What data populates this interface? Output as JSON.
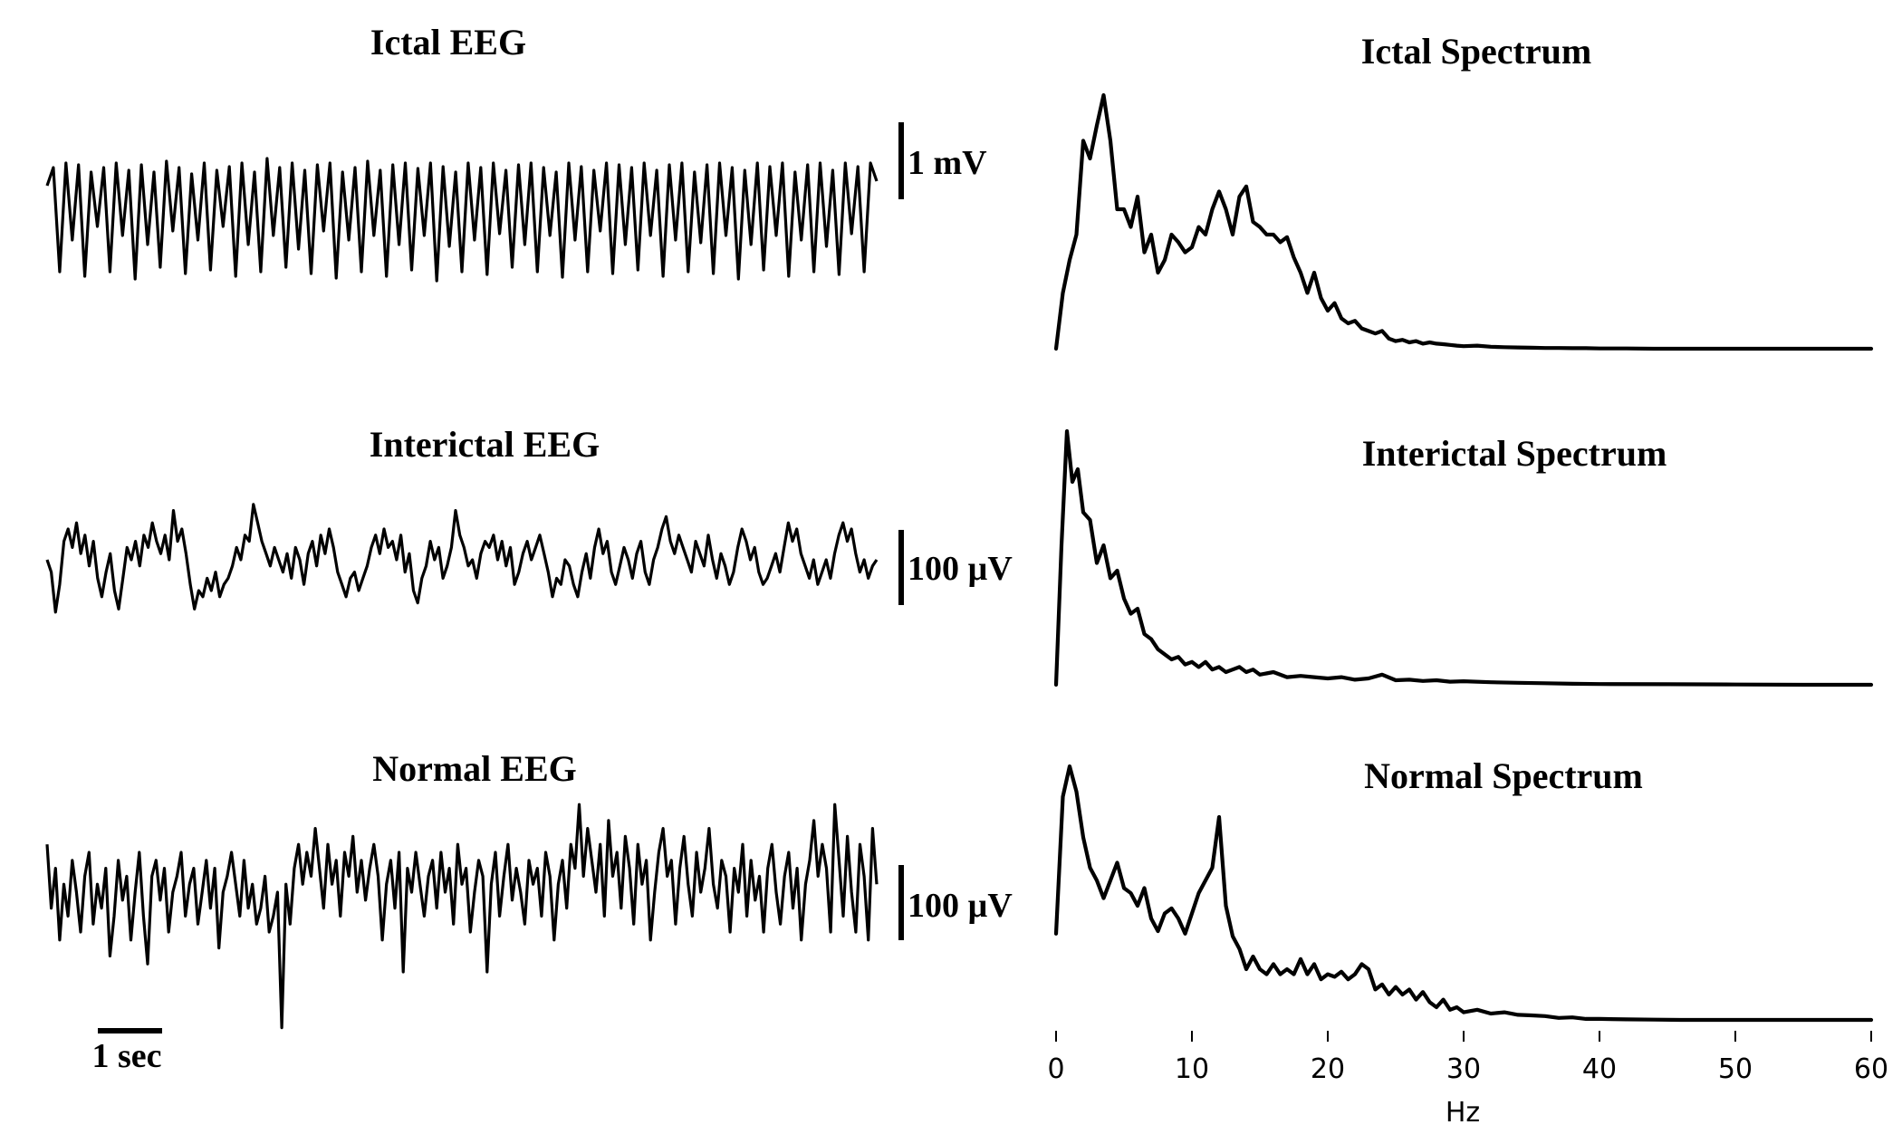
{
  "chart_data": [
    {
      "type": "line",
      "title": "Ictal EEG",
      "scale_bar": "1 mV",
      "series": [
        {
          "values": [
            0.05,
            0.25,
            -0.9,
            0.3,
            -0.55,
            0.28,
            -0.95,
            0.2,
            -0.4,
            0.25,
            -0.9,
            0.3,
            -0.5,
            0.22,
            -0.98,
            0.28,
            -0.6,
            0.2,
            -0.85,
            0.32,
            -0.45,
            0.25,
            -0.92,
            0.18,
            -0.55,
            0.3,
            -0.88,
            0.22,
            -0.4,
            0.26,
            -0.95,
            0.3,
            -0.6,
            0.2,
            -0.9,
            0.35,
            -0.5,
            0.25,
            -0.85,
            0.3,
            -0.65,
            0.22,
            -0.92,
            0.28,
            -0.45,
            0.3,
            -0.97,
            0.2,
            -0.55,
            0.25,
            -0.9,
            0.32,
            -0.5,
            0.22,
            -0.95,
            0.28,
            -0.6,
            0.3,
            -0.88,
            0.24,
            -0.5,
            0.3,
            -1.0,
            0.26,
            -0.62,
            0.2,
            -0.9,
            0.3,
            -0.55,
            0.25,
            -0.93,
            0.3,
            -0.48,
            0.22,
            -0.85,
            0.28,
            -0.6,
            0.3,
            -0.9,
            0.25,
            -0.5,
            0.2,
            -0.96,
            0.3,
            -0.55,
            0.26,
            -0.9,
            0.22,
            -0.45,
            0.3,
            -0.92,
            0.28,
            -0.6,
            0.25,
            -0.88,
            0.3,
            -0.5,
            0.22,
            -0.95,
            0.28,
            -0.55,
            0.3,
            -0.9,
            0.2,
            -0.58,
            0.28,
            -0.92,
            0.3,
            -0.5,
            0.25,
            -0.98,
            0.22,
            -0.6,
            0.3,
            -0.88,
            0.26,
            -0.5,
            0.3,
            -0.95,
            0.2,
            -0.55,
            0.28,
            -0.9,
            0.3,
            -0.62,
            0.22,
            -0.93,
            0.3,
            -0.48,
            0.26,
            -0.9,
            0.3,
            0.1
          ]
        }
      ]
    },
    {
      "type": "line",
      "title": "Interictal EEG",
      "scale_bar": "100 µV",
      "series": [
        {
          "values": [
            0.0,
            -0.2,
            -0.85,
            -0.4,
            0.3,
            0.5,
            0.2,
            0.6,
            0.1,
            0.4,
            -0.1,
            0.3,
            -0.3,
            -0.6,
            -0.2,
            0.1,
            -0.5,
            -0.8,
            -0.3,
            0.2,
            0.0,
            0.3,
            -0.1,
            0.4,
            0.2,
            0.6,
            0.3,
            0.1,
            0.4,
            0.0,
            0.8,
            0.3,
            0.5,
            0.1,
            -0.4,
            -0.8,
            -0.5,
            -0.6,
            -0.3,
            -0.5,
            -0.2,
            -0.6,
            -0.4,
            -0.3,
            -0.1,
            0.2,
            0.0,
            0.4,
            0.3,
            0.9,
            0.6,
            0.3,
            0.1,
            -0.1,
            0.2,
            0.0,
            -0.2,
            0.1,
            -0.3,
            0.2,
            0.0,
            -0.4,
            0.1,
            0.3,
            -0.1,
            0.4,
            0.1,
            0.5,
            0.2,
            -0.2,
            -0.4,
            -0.6,
            -0.3,
            -0.2,
            -0.5,
            -0.3,
            -0.1,
            0.2,
            0.4,
            0.1,
            0.5,
            0.2,
            0.3,
            0.0,
            0.4,
            -0.2,
            0.1,
            -0.5,
            -0.7,
            -0.3,
            -0.1,
            0.3,
            0.0,
            0.2,
            -0.3,
            -0.1,
            0.2,
            0.8,
            0.4,
            0.2,
            -0.1,
            0.0,
            -0.3,
            0.1,
            0.3,
            0.2,
            0.4,
            0.0,
            0.3,
            -0.1,
            0.2,
            -0.4,
            -0.2,
            0.1,
            0.3,
            0.0,
            0.2,
            0.4,
            0.1,
            -0.2,
            -0.6,
            -0.3,
            -0.4,
            0.0,
            -0.1,
            -0.4,
            -0.6,
            -0.2,
            0.1,
            -0.3,
            0.2,
            0.5,
            0.1,
            0.3,
            -0.2,
            -0.4,
            -0.1,
            0.2,
            0.0,
            -0.3,
            0.1,
            0.3,
            -0.2,
            -0.4,
            0.0,
            0.2,
            0.5,
            0.7,
            0.3,
            0.1,
            0.4,
            0.2,
            0.0,
            -0.2,
            0.3,
            0.1,
            -0.1,
            0.4,
            0.0,
            -0.3,
            0.1,
            -0.1,
            -0.4,
            -0.2,
            0.2,
            0.5,
            0.3,
            0.0,
            0.2,
            -0.2,
            -0.4,
            -0.3,
            -0.1,
            0.1,
            -0.2,
            0.2,
            0.6,
            0.3,
            0.5,
            0.1,
            -0.1,
            -0.3,
            0.0,
            -0.4,
            -0.2,
            0.0,
            -0.3,
            0.1,
            0.4,
            0.6,
            0.3,
            0.5,
            0.1,
            -0.2,
            0.0,
            -0.3,
            -0.1,
            0.0
          ]
        }
      ]
    },
    {
      "type": "line",
      "title": "Normal EEG",
      "scale_bar": "100 µV",
      "time_scale_bar": "1 sec",
      "series": [
        {
          "values": [
            0.6,
            -0.2,
            0.3,
            -0.6,
            0.1,
            -0.3,
            0.4,
            0.0,
            -0.5,
            0.2,
            0.5,
            -0.4,
            0.1,
            -0.2,
            0.3,
            -0.8,
            -0.3,
            0.4,
            -0.1,
            0.2,
            -0.6,
            0.0,
            0.5,
            -0.3,
            -0.9,
            0.2,
            0.4,
            -0.1,
            0.3,
            -0.5,
            0.0,
            0.2,
            0.5,
            -0.3,
            0.1,
            0.3,
            -0.4,
            0.0,
            0.4,
            -0.2,
            0.3,
            -0.7,
            0.0,
            0.2,
            0.5,
            0.1,
            -0.3,
            0.4,
            -0.2,
            0.1,
            -0.4,
            -0.2,
            0.2,
            -0.5,
            -0.3,
            0.0,
            -1.7,
            0.1,
            -0.4,
            0.3,
            0.6,
            0.1,
            0.5,
            0.2,
            0.8,
            0.3,
            -0.2,
            0.6,
            0.1,
            0.4,
            -0.3,
            0.5,
            0.2,
            0.7,
            0.0,
            0.4,
            -0.1,
            0.3,
            0.6,
            0.2,
            -0.6,
            0.1,
            0.4,
            -0.2,
            0.5,
            -1.0,
            0.3,
            0.0,
            0.5,
            0.1,
            -0.3,
            0.2,
            0.4,
            -0.2,
            0.5,
            0.0,
            0.3,
            -0.4,
            0.6,
            0.1,
            0.3,
            -0.5,
            0.0,
            0.4,
            0.2,
            -1.0,
            0.1,
            0.5,
            -0.3,
            0.2,
            0.6,
            -0.1,
            0.3,
            0.0,
            -0.4,
            0.4,
            0.1,
            0.3,
            -0.3,
            0.5,
            0.2,
            -0.6,
            0.1,
            0.4,
            -0.2,
            0.6,
            0.3,
            1.1,
            0.2,
            0.8,
            0.4,
            0.0,
            0.6,
            -0.3,
            0.9,
            0.2,
            0.5,
            -0.2,
            0.7,
            0.3,
            -0.4,
            0.6,
            0.1,
            0.4,
            -0.6,
            0.0,
            0.5,
            0.8,
            0.2,
            0.4,
            -0.4,
            0.3,
            0.7,
            0.1,
            -0.3,
            0.5,
            0.0,
            0.3,
            0.8,
            0.1,
            -0.2,
            0.4,
            0.2,
            -0.5,
            0.3,
            0.0,
            0.6,
            -0.3,
            0.4,
            -0.1,
            0.2,
            -0.5,
            0.3,
            0.6,
            0.0,
            -0.4,
            0.2,
            0.5,
            -0.2,
            0.3,
            -0.6,
            0.1,
            0.4,
            0.9,
            0.2,
            0.6,
            0.3,
            -0.5,
            1.1,
            0.4,
            -0.3,
            0.7,
            0.0,
            -0.5,
            0.6,
            0.2,
            -0.6,
            0.8,
            0.1
          ]
        }
      ]
    },
    {
      "type": "line",
      "title": "Ictal Spectrum",
      "xlabel": "Hz",
      "xlim": [
        0,
        60
      ],
      "series": [
        {
          "x": [
            0,
            0.5,
            1,
            1.5,
            2,
            2.5,
            3,
            3.5,
            4,
            4.5,
            5,
            5.5,
            6,
            6.5,
            7,
            7.5,
            8,
            8.5,
            9,
            9.5,
            10,
            10.5,
            11,
            11.5,
            12,
            12.5,
            13,
            13.5,
            14,
            14.5,
            15,
            15.5,
            16,
            16.5,
            17,
            17.5,
            18,
            18.5,
            19,
            19.5,
            20,
            20.5,
            21,
            21.5,
            22,
            22.5,
            23,
            23.5,
            24,
            24.5,
            25,
            25.5,
            26,
            26.5,
            27,
            27.5,
            28,
            28.5,
            29,
            29.5,
            30,
            31,
            32,
            33,
            34,
            35,
            36,
            37,
            38,
            39,
            40,
            42,
            44,
            46,
            48,
            50,
            52,
            54,
            56,
            58,
            60
          ],
          "y": [
            0.0,
            0.22,
            0.35,
            0.45,
            0.82,
            0.75,
            0.88,
            1.0,
            0.82,
            0.55,
            0.55,
            0.48,
            0.6,
            0.38,
            0.45,
            0.3,
            0.35,
            0.45,
            0.42,
            0.38,
            0.4,
            0.48,
            0.45,
            0.55,
            0.62,
            0.55,
            0.45,
            0.6,
            0.64,
            0.5,
            0.48,
            0.45,
            0.45,
            0.42,
            0.44,
            0.36,
            0.3,
            0.22,
            0.3,
            0.2,
            0.15,
            0.18,
            0.12,
            0.1,
            0.11,
            0.08,
            0.07,
            0.06,
            0.07,
            0.04,
            0.03,
            0.035,
            0.025,
            0.03,
            0.02,
            0.025,
            0.02,
            0.018,
            0.015,
            0.012,
            0.01,
            0.012,
            0.008,
            0.006,
            0.005,
            0.004,
            0.003,
            0.003,
            0.002,
            0.002,
            0.001,
            0.001,
            0.0,
            0.0,
            0.0,
            0.0,
            0.0,
            0.0,
            0.0,
            0.0,
            0.0
          ]
        }
      ]
    },
    {
      "type": "line",
      "title": "Interictal Spectrum",
      "xlabel": "Hz",
      "xlim": [
        0,
        60
      ],
      "series": [
        {
          "x": [
            0,
            0.4,
            0.8,
            1.2,
            1.6,
            2,
            2.5,
            3,
            3.5,
            4,
            4.5,
            5,
            5.5,
            6,
            6.5,
            7,
            7.5,
            8,
            8.5,
            9,
            9.5,
            10,
            10.5,
            11,
            11.5,
            12,
            12.5,
            13,
            13.5,
            14,
            14.5,
            15,
            16,
            17,
            18,
            19,
            20,
            21,
            22,
            23,
            24,
            25,
            26,
            27,
            28,
            29,
            30,
            32,
            34,
            36,
            38,
            40,
            45,
            50,
            55,
            60
          ],
          "y": [
            0.0,
            0.55,
            1.0,
            0.8,
            0.85,
            0.68,
            0.65,
            0.48,
            0.55,
            0.42,
            0.45,
            0.34,
            0.28,
            0.3,
            0.2,
            0.18,
            0.14,
            0.12,
            0.1,
            0.11,
            0.08,
            0.09,
            0.07,
            0.09,
            0.06,
            0.07,
            0.05,
            0.06,
            0.07,
            0.05,
            0.06,
            0.04,
            0.05,
            0.03,
            0.035,
            0.03,
            0.025,
            0.03,
            0.02,
            0.025,
            0.04,
            0.018,
            0.02,
            0.015,
            0.018,
            0.012,
            0.014,
            0.01,
            0.008,
            0.006,
            0.004,
            0.003,
            0.002,
            0.001,
            0.0,
            0.0
          ]
        }
      ]
    },
    {
      "type": "line",
      "title": "Normal Spectrum",
      "xlabel": "Hz",
      "xticks": [
        0,
        10,
        20,
        30,
        40,
        50,
        60
      ],
      "xlim": [
        0,
        60
      ],
      "series": [
        {
          "x": [
            0,
            0.5,
            1,
            1.5,
            2,
            2.5,
            3,
            3.5,
            4,
            4.5,
            5,
            5.5,
            6,
            6.5,
            7,
            7.5,
            8,
            8.5,
            9,
            9.5,
            10,
            10.5,
            11,
            11.5,
            12,
            12.5,
            13,
            13.5,
            14,
            14.5,
            15,
            15.5,
            16,
            16.5,
            17,
            17.5,
            18,
            18.5,
            19,
            19.5,
            20,
            20.5,
            21,
            21.5,
            22,
            22.5,
            23,
            23.5,
            24,
            24.5,
            25,
            25.5,
            26,
            26.5,
            27,
            27.5,
            28,
            28.5,
            29,
            29.5,
            30,
            31,
            32,
            33,
            34,
            35,
            36,
            37,
            38,
            39,
            40,
            42,
            44,
            46,
            48,
            50,
            52,
            54,
            56,
            58,
            60
          ],
          "y": [
            0.34,
            0.88,
            1.0,
            0.9,
            0.72,
            0.6,
            0.55,
            0.48,
            0.55,
            0.62,
            0.52,
            0.5,
            0.45,
            0.52,
            0.4,
            0.35,
            0.42,
            0.44,
            0.4,
            0.34,
            0.42,
            0.5,
            0.55,
            0.6,
            0.8,
            0.45,
            0.33,
            0.28,
            0.2,
            0.25,
            0.2,
            0.18,
            0.22,
            0.18,
            0.2,
            0.18,
            0.24,
            0.18,
            0.22,
            0.16,
            0.18,
            0.17,
            0.19,
            0.16,
            0.18,
            0.22,
            0.2,
            0.12,
            0.14,
            0.1,
            0.13,
            0.1,
            0.12,
            0.08,
            0.11,
            0.07,
            0.05,
            0.08,
            0.04,
            0.05,
            0.03,
            0.04,
            0.025,
            0.03,
            0.02,
            0.018,
            0.015,
            0.008,
            0.01,
            0.004,
            0.004,
            0.002,
            0.001,
            0.0,
            0.0,
            0.0,
            0.0,
            0.0,
            0.0,
            0.0,
            0.0
          ]
        }
      ]
    }
  ],
  "axis": {
    "xlabel": "Hz",
    "xticks": [
      "0",
      "10",
      "20",
      "30",
      "40",
      "50",
      "60"
    ]
  }
}
